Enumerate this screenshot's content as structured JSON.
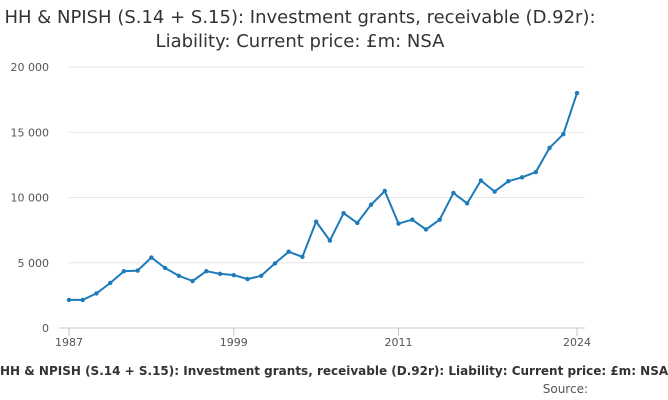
{
  "chart_data": {
    "type": "line",
    "title": "HH & NPISH (S.14 + S.15): Investment grants, receivable (D.92r): Liability: Current price: £m: NSA",
    "xlabel": "",
    "ylabel": "",
    "x_tick_labels": [
      "1987",
      "1999",
      "2011",
      "2024"
    ],
    "y_tick_labels": [
      "0",
      "5 000",
      "10 000",
      "15 000",
      "20 000"
    ],
    "y_ticks": [
      0,
      5000,
      10000,
      15000,
      20000
    ],
    "xlim": [
      1987,
      2024
    ],
    "ylim": [
      0,
      20000
    ],
    "grid": "horizontal",
    "legend": "bottom",
    "series_color": "#1c7bb8",
    "series": [
      {
        "name": "HH & NPISH (S.14 + S.15): Investment grants, receivable (D.92r): Liability: Current price: £m: NSA",
        "x": [
          1987,
          1988,
          1989,
          1990,
          1991,
          1992,
          1993,
          1994,
          1995,
          1996,
          1997,
          1998,
          1999,
          2000,
          2001,
          2002,
          2003,
          2004,
          2005,
          2006,
          2007,
          2008,
          2009,
          2010,
          2011,
          2012,
          2013,
          2014,
          2015,
          2016,
          2017,
          2018,
          2019,
          2020,
          2021,
          2022,
          2023,
          2024
        ],
        "values": [
          2150,
          2150,
          2650,
          3450,
          4350,
          4400,
          5400,
          4600,
          4000,
          3600,
          4350,
          4150,
          4050,
          3750,
          4000,
          4950,
          5850,
          5450,
          8150,
          6700,
          8800,
          8050,
          9450,
          10500,
          8000,
          8300,
          7550,
          8300,
          10350,
          9550,
          11300,
          10450,
          11250,
          11550,
          11950,
          13800,
          14850,
          18000
        ]
      }
    ]
  },
  "footer": {
    "source_label": "Source:"
  }
}
